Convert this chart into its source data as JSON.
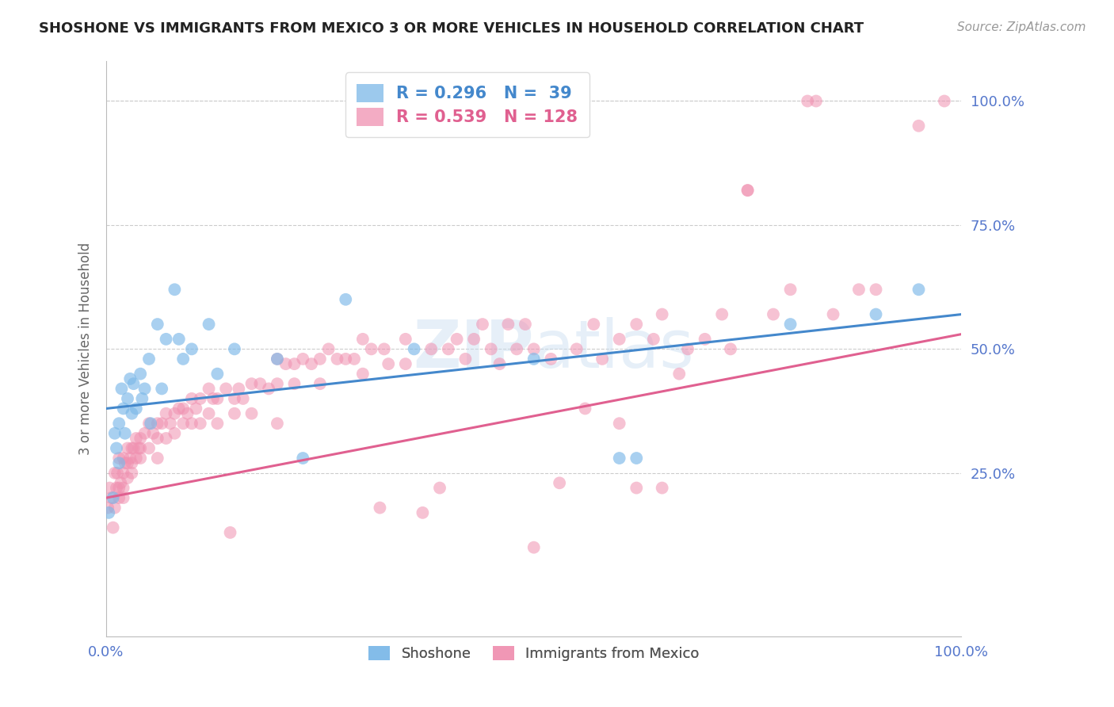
{
  "title": "SHOSHONE VS IMMIGRANTS FROM MEXICO 3 OR MORE VEHICLES IN HOUSEHOLD CORRELATION CHART",
  "source": "Source: ZipAtlas.com",
  "ylabel": "3 or more Vehicles in Household",
  "ytick_values": [
    25,
    50,
    75,
    100
  ],
  "xlim": [
    0,
    100
  ],
  "ylim": [
    -8,
    108
  ],
  "watermark": "ZIPatlas",
  "blue_color": "#7bb8e8",
  "pink_color": "#f090b0",
  "line_blue_color": "#4488cc",
  "line_pink_color": "#e06090",
  "axis_label_color": "#5577cc",
  "grid_color": "#cccccc",
  "background_color": "#ffffff",
  "title_fontsize": 13,
  "source_fontsize": 11,
  "shoshone_scatter": [
    [
      0.3,
      17
    ],
    [
      0.8,
      20
    ],
    [
      1.0,
      33
    ],
    [
      1.2,
      30
    ],
    [
      1.5,
      35
    ],
    [
      1.8,
      42
    ],
    [
      2.0,
      38
    ],
    [
      2.2,
      33
    ],
    [
      2.5,
      40
    ],
    [
      2.8,
      44
    ],
    [
      3.0,
      37
    ],
    [
      3.2,
      43
    ],
    [
      3.5,
      38
    ],
    [
      4.0,
      45
    ],
    [
      4.2,
      40
    ],
    [
      4.5,
      42
    ],
    [
      5.0,
      48
    ],
    [
      5.2,
      35
    ],
    [
      6.0,
      55
    ],
    [
      6.5,
      42
    ],
    [
      7.0,
      52
    ],
    [
      8.0,
      62
    ],
    [
      8.5,
      52
    ],
    [
      9.0,
      48
    ],
    [
      10.0,
      50
    ],
    [
      12.0,
      55
    ],
    [
      13.0,
      45
    ],
    [
      15.0,
      50
    ],
    [
      20.0,
      48
    ],
    [
      23.0,
      28
    ],
    [
      28.0,
      60
    ],
    [
      36.0,
      50
    ],
    [
      50.0,
      48
    ],
    [
      60.0,
      28
    ],
    [
      62.0,
      28
    ],
    [
      80.0,
      55
    ],
    [
      90.0,
      57
    ],
    [
      95.0,
      62
    ],
    [
      1.5,
      27
    ]
  ],
  "mexico_scatter": [
    [
      0.2,
      18
    ],
    [
      0.4,
      22
    ],
    [
      0.6,
      20
    ],
    [
      0.8,
      14
    ],
    [
      1.0,
      25
    ],
    [
      1.0,
      18
    ],
    [
      1.2,
      22
    ],
    [
      1.3,
      25
    ],
    [
      1.5,
      28
    ],
    [
      1.5,
      22
    ],
    [
      1.5,
      20
    ],
    [
      1.7,
      23
    ],
    [
      2.0,
      28
    ],
    [
      2.0,
      25
    ],
    [
      2.0,
      22
    ],
    [
      2.0,
      20
    ],
    [
      2.2,
      27
    ],
    [
      2.5,
      30
    ],
    [
      2.5,
      27
    ],
    [
      2.5,
      24
    ],
    [
      2.8,
      28
    ],
    [
      3.0,
      30
    ],
    [
      3.0,
      27
    ],
    [
      3.0,
      25
    ],
    [
      3.2,
      30
    ],
    [
      3.5,
      32
    ],
    [
      3.5,
      28
    ],
    [
      3.8,
      30
    ],
    [
      4.0,
      32
    ],
    [
      4.0,
      30
    ],
    [
      4.0,
      28
    ],
    [
      4.5,
      33
    ],
    [
      5.0,
      35
    ],
    [
      5.0,
      30
    ],
    [
      5.5,
      33
    ],
    [
      6.0,
      35
    ],
    [
      6.0,
      32
    ],
    [
      6.0,
      28
    ],
    [
      6.5,
      35
    ],
    [
      7.0,
      37
    ],
    [
      7.0,
      32
    ],
    [
      7.5,
      35
    ],
    [
      8.0,
      37
    ],
    [
      8.0,
      33
    ],
    [
      8.5,
      38
    ],
    [
      9.0,
      38
    ],
    [
      9.0,
      35
    ],
    [
      9.5,
      37
    ],
    [
      10.0,
      40
    ],
    [
      10.0,
      35
    ],
    [
      10.5,
      38
    ],
    [
      11.0,
      40
    ],
    [
      11.0,
      35
    ],
    [
      12.0,
      42
    ],
    [
      12.0,
      37
    ],
    [
      12.5,
      40
    ],
    [
      13.0,
      40
    ],
    [
      13.0,
      35
    ],
    [
      14.0,
      42
    ],
    [
      15.0,
      40
    ],
    [
      15.0,
      37
    ],
    [
      15.5,
      42
    ],
    [
      16.0,
      40
    ],
    [
      17.0,
      43
    ],
    [
      17.0,
      37
    ],
    [
      18.0,
      43
    ],
    [
      19.0,
      42
    ],
    [
      20.0,
      48
    ],
    [
      20.0,
      43
    ],
    [
      20.0,
      35
    ],
    [
      21.0,
      47
    ],
    [
      22.0,
      47
    ],
    [
      22.0,
      43
    ],
    [
      23.0,
      48
    ],
    [
      24.0,
      47
    ],
    [
      25.0,
      48
    ],
    [
      25.0,
      43
    ],
    [
      26.0,
      50
    ],
    [
      27.0,
      48
    ],
    [
      28.0,
      48
    ],
    [
      29.0,
      48
    ],
    [
      30.0,
      52
    ],
    [
      30.0,
      45
    ],
    [
      31.0,
      50
    ],
    [
      32.5,
      50
    ],
    [
      33.0,
      47
    ],
    [
      35.0,
      52
    ],
    [
      35.0,
      47
    ],
    [
      38.0,
      50
    ],
    [
      40.0,
      50
    ],
    [
      41.0,
      52
    ],
    [
      42.0,
      48
    ],
    [
      43.0,
      52
    ],
    [
      44.0,
      55
    ],
    [
      45.0,
      50
    ],
    [
      46.0,
      47
    ],
    [
      47.0,
      55
    ],
    [
      48.0,
      50
    ],
    [
      49.0,
      55
    ],
    [
      50.0,
      50
    ],
    [
      52.0,
      48
    ],
    [
      55.0,
      50
    ],
    [
      56.0,
      38
    ],
    [
      57.0,
      55
    ],
    [
      58.0,
      48
    ],
    [
      60.0,
      52
    ],
    [
      60.0,
      35
    ],
    [
      62.0,
      55
    ],
    [
      64.0,
      52
    ],
    [
      65.0,
      57
    ],
    [
      67.0,
      45
    ],
    [
      68.0,
      50
    ],
    [
      70.0,
      52
    ],
    [
      72.0,
      57
    ],
    [
      73.0,
      50
    ],
    [
      75.0,
      82
    ],
    [
      78.0,
      57
    ],
    [
      80.0,
      62
    ],
    [
      82.0,
      100
    ],
    [
      83.0,
      100
    ],
    [
      85.0,
      57
    ],
    [
      88.0,
      62
    ],
    [
      90.0,
      62
    ],
    [
      95.0,
      95
    ],
    [
      98.0,
      100
    ],
    [
      50.0,
      10
    ],
    [
      37.0,
      17
    ],
    [
      39.0,
      22
    ],
    [
      53.0,
      23
    ],
    [
      14.5,
      13
    ],
    [
      62.0,
      22
    ],
    [
      65.0,
      22
    ],
    [
      32.0,
      18
    ],
    [
      75.0,
      82
    ]
  ],
  "blue_trendline": {
    "x_start": 0,
    "x_end": 100,
    "y_start": 38,
    "y_end": 57
  },
  "pink_trendline": {
    "x_start": 0,
    "x_end": 100,
    "y_start": 20,
    "y_end": 53
  }
}
